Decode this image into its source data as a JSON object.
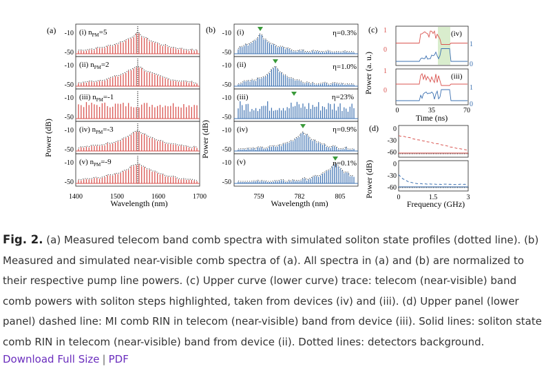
{
  "figure": {
    "panel_labels": [
      "(a)",
      "(b)",
      "(c)",
      "(d)"
    ],
    "a": {
      "ylabel": "Power (dB)",
      "xlabel": "Wavelength (nm)",
      "xticks": [
        "1400",
        "1500",
        "1600",
        "1700"
      ],
      "yticks": [
        "-10",
        "-50"
      ],
      "rows": [
        {
          "roman": "(i)",
          "n": "5"
        },
        {
          "roman": "(ii)",
          "n": "2"
        },
        {
          "roman": "(iii)",
          "n": "-1"
        },
        {
          "roman": "(iv)",
          "n": "-3"
        },
        {
          "roman": "(v)",
          "n": "-9"
        }
      ],
      "n_symbol": "n",
      "n_sub": "PM",
      "n_eq": "="
    },
    "b": {
      "ylabel": "Power (dB)",
      "xlabel": "Wavelength (nm)",
      "xticks": [
        "759",
        "782",
        "805"
      ],
      "yticks": [
        "-10",
        "-50"
      ],
      "rows": [
        {
          "roman": "(i)",
          "eta": "η=0.3%"
        },
        {
          "roman": "(ii)",
          "eta": "η=1.0%"
        },
        {
          "roman": "(iii)",
          "eta": "η=23%"
        },
        {
          "roman": "(iv)",
          "eta": "η=0.9%"
        },
        {
          "roman": "(v)",
          "eta": "η=0.1%"
        }
      ]
    },
    "c": {
      "ylabel": "Power (a. u.)",
      "xlabel": "Time (ns)",
      "xticks": [
        "0",
        "35",
        "70"
      ],
      "left_ticks": [
        "1",
        "0"
      ],
      "right_ticks": [
        "1",
        "0"
      ],
      "tags": [
        "(iv)",
        "(iii)"
      ]
    },
    "d": {
      "ylabel": "Power (dB)",
      "xlabel": "Frequency (GHz)",
      "xticks": [
        "0",
        "1.5",
        "3"
      ],
      "yticks_top": [
        "0",
        "-30",
        "-60"
      ],
      "yticks_bottom": [
        "0",
        "-30",
        "-60"
      ]
    },
    "colors": {
      "red": "#d9534f",
      "blue": "#3a6fb0",
      "green_band": "#cfe8c0",
      "marker": "#3a9a3a",
      "axis": "#222222"
    }
  },
  "caption": {
    "label": "Fig. 2.",
    "text": "(a) Measured telecom band comb spectra with simulated soliton state profiles (dotted line). (b) Measured and simulated near-visible comb spectra of (a). All spectra in (a) and (b) are normalized to their respective pump line powers. (c) Upper curve (lower curve) trace: telecom (near-visible) band comb powers with soliton steps highlighted, taken from devices (iv) and (iii). (d) Upper panel (lower panel) dashed line: MI comb RIN in telecom (near-visible) band from device (iii). Solid lines: soliton state comb RIN in telecom (near-visible) band from device (ii). Dotted lines: detectors background."
  },
  "links": {
    "download": "Download Full Size",
    "separator": "|",
    "pdf": "PDF"
  }
}
